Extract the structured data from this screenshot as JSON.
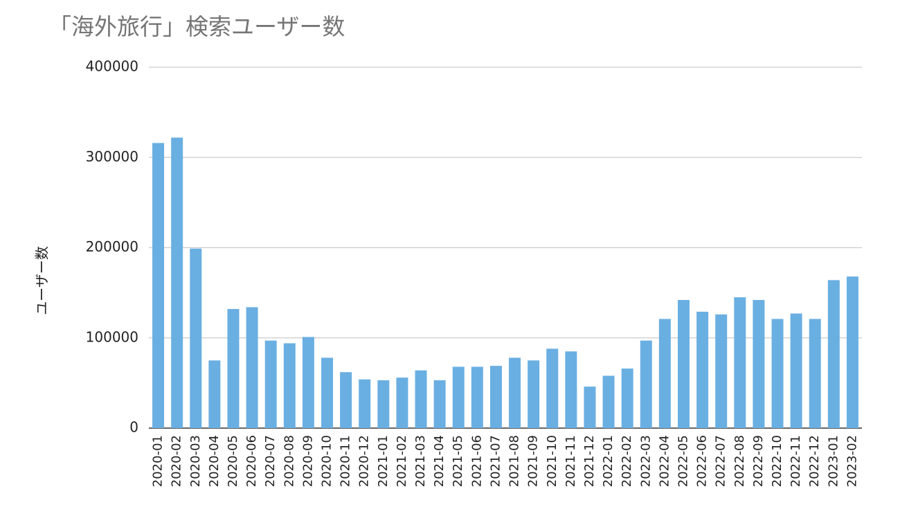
{
  "chart_data": {
    "type": "bar",
    "title": "「海外旅行」検索ユーザー数",
    "y_label": "ユーザー数",
    "categories": [
      "2020-01",
      "2020-02",
      "2020-03",
      "2020-04",
      "2020-05",
      "2020-06",
      "2020-07",
      "2020-08",
      "2020-09",
      "2020-10",
      "2020-11",
      "2020-12",
      "2021-01",
      "2021-02",
      "2021-03",
      "2021-04",
      "2021-05",
      "2021-06",
      "2021-07",
      "2021-08",
      "2021-09",
      "2021-10",
      "2021-11",
      "2021-12",
      "2022-01",
      "2022-02",
      "2022-03",
      "2022-04",
      "2022-05",
      "2022-06",
      "2022-07",
      "2022-08",
      "2022-09",
      "2022-10",
      "2022-11",
      "2022-12",
      "2023-01",
      "2023-02"
    ],
    "values": [
      316000,
      322000,
      199000,
      75000,
      132000,
      134000,
      97000,
      94000,
      101000,
      78000,
      62000,
      54000,
      53000,
      56000,
      64000,
      53000,
      68000,
      68000,
      69000,
      78000,
      75000,
      88000,
      85000,
      46000,
      58000,
      66000,
      97000,
      121000,
      142000,
      129000,
      126000,
      145000,
      142000,
      121000,
      127000,
      121000,
      164000,
      168000
    ],
    "color": "#6aafe2",
    "ylim": [
      0,
      400000
    ],
    "yticks": [
      0,
      100000,
      200000,
      300000,
      400000
    ],
    "grid": true
  }
}
